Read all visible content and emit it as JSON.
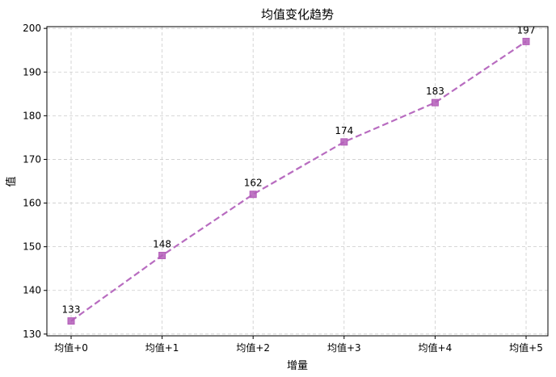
{
  "chart_data": {
    "type": "line",
    "title": "均值变化趋势",
    "xlabel": "增量",
    "ylabel": "值",
    "categories": [
      "均值+0",
      "均值+1",
      "均值+2",
      "均值+3",
      "均值+4",
      "均值+5"
    ],
    "series": [
      {
        "values": [
          133,
          148,
          162,
          174,
          183,
          197
        ]
      }
    ],
    "data_labels": [
      "133",
      "148",
      "162",
      "174",
      "183",
      "197"
    ],
    "y_ticks": [
      130,
      140,
      150,
      160,
      170,
      180,
      190,
      200
    ],
    "ylim": [
      129.6,
      200.4
    ],
    "grid": true,
    "line_style": "dashed",
    "marker": "square",
    "colors": {
      "line": "#b86cc0",
      "marker": "#b35db8",
      "grid": "#cccccc"
    }
  }
}
